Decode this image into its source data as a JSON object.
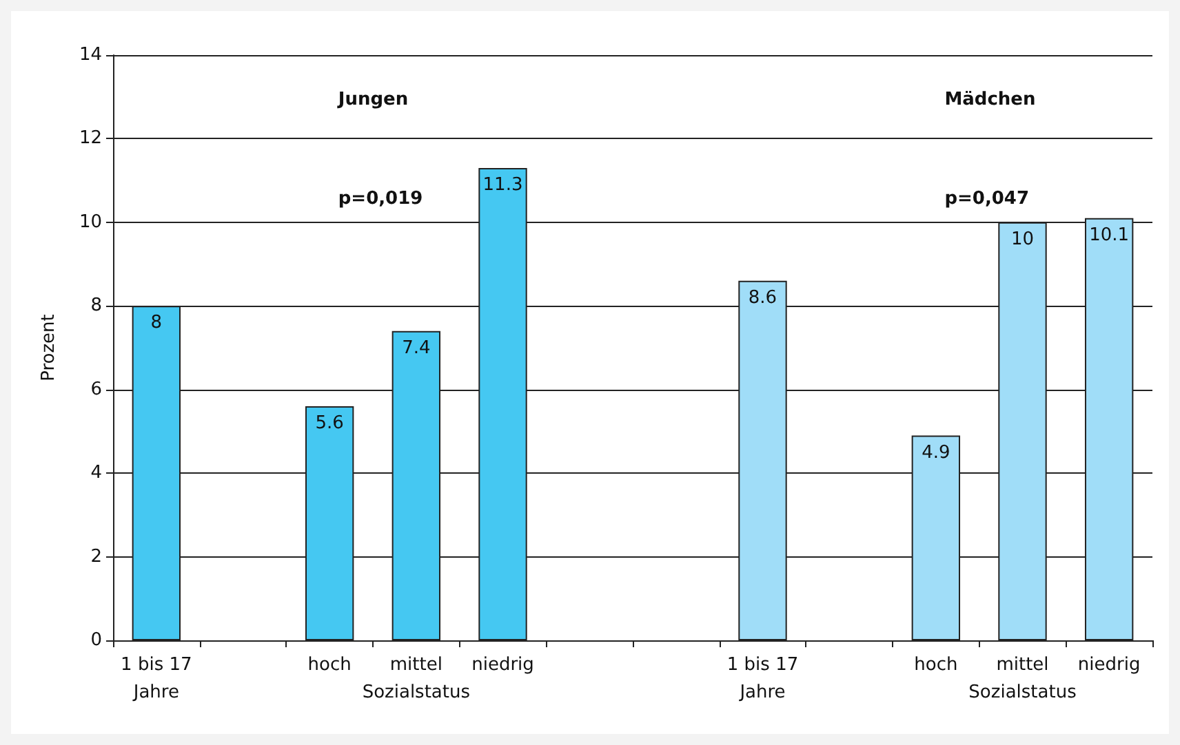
{
  "chart_data": {
    "type": "bar",
    "ylabel": "Prozent",
    "categories": [
      "1 bis 17\nJahre",
      null,
      "hoch",
      "mittel\nSozialstatus",
      "niedrig",
      null,
      null,
      "1 bis 17\nJahre",
      null,
      "hoch",
      "mittel\nSozialstatus",
      "niedrig"
    ],
    "values": [
      8,
      null,
      5.6,
      7.4,
      11.3,
      null,
      null,
      8.6,
      null,
      4.9,
      10,
      10.1
    ],
    "colors": [
      "#45c8f2",
      null,
      "#45c8f2",
      "#45c8f2",
      "#45c8f2",
      null,
      null,
      "#a0ddf8",
      null,
      "#a0ddf8",
      "#a0ddf8",
      "#a0ddf8"
    ],
    "ylim": [
      0,
      14
    ],
    "yticks": [
      0,
      2,
      4,
      6,
      8,
      10,
      12,
      14
    ],
    "grid": "y",
    "data_labels": true,
    "annotations": [
      "Jungen",
      "p=0,019",
      "Mädchen",
      "p=0,047"
    ]
  }
}
